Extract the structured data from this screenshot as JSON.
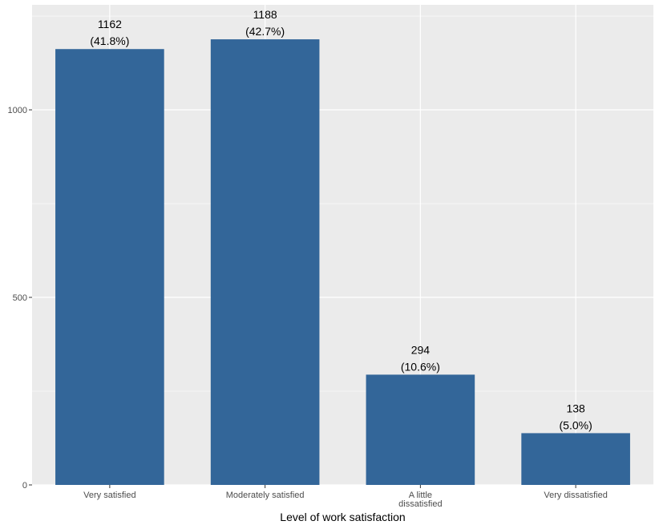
{
  "chart_data": {
    "type": "bar",
    "title": "",
    "xlabel": "Level of work satisfaction",
    "ylabel": "",
    "categories": [
      [
        "Very satisfied"
      ],
      [
        "Moderately satisfied"
      ],
      [
        "A little",
        "dissatisfied"
      ],
      [
        "Very dissatisfied"
      ]
    ],
    "values": [
      1162,
      1188,
      294,
      138
    ],
    "count_labels": [
      "1162",
      "1188",
      "294",
      "138"
    ],
    "percent_labels": [
      "(41.8%)",
      "(42.7%)",
      "(10.6%)",
      "(5.0%)"
    ],
    "ylim": [
      0,
      1280
    ],
    "y_ticks": [
      0,
      500,
      1000
    ],
    "y_tick_labels": [
      "0",
      "500",
      "1000"
    ],
    "grid": true,
    "legend": "none",
    "colors": {
      "bar": "#336699",
      "panel": "#EBEBEB",
      "grid_major": "#FFFFFF",
      "axis_text": "#4D4D4D"
    }
  }
}
